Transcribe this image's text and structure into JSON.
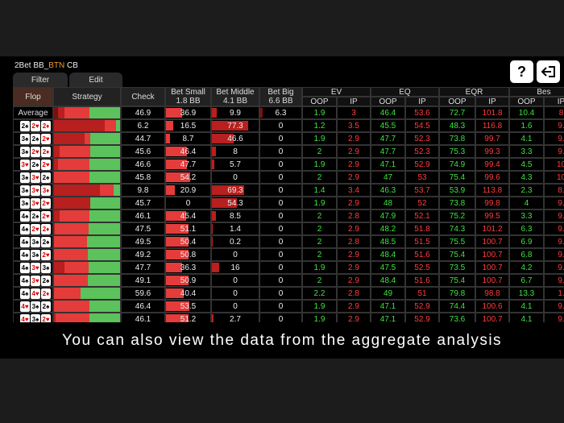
{
  "header": {
    "title": [
      "2Bet BB_",
      "BTN",
      " CB"
    ],
    "tabs": [
      "Filter",
      "Edit"
    ],
    "help": "?"
  },
  "table": {
    "columns": [
      "Flop",
      "Strategy",
      "Check",
      {
        "name": "Bet Small",
        "size": "1.8 BB"
      },
      {
        "name": "Bet Middle",
        "size": "4.1 BB"
      },
      {
        "name": "Bet Big",
        "size": "6.6 BB"
      }
    ],
    "groups": [
      "EV",
      "EQ",
      "EQR",
      "Bes"
    ],
    "sides": [
      "OOP",
      "IP"
    ],
    "rows": [
      {
        "label": "Average",
        "values": [
          46.9,
          36.9,
          9.9,
          6.3,
          1.9,
          3,
          46.4,
          53.6,
          72.7,
          101.8,
          10.4,
          "8"
        ]
      },
      {
        "flop": [
          "2♠",
          "2♥",
          "2♦"
        ],
        "values": [
          6.2,
          16.5,
          77.3,
          0,
          1.2,
          3.5,
          45.5,
          54.5,
          48.3,
          116.8,
          1.6,
          "9."
        ]
      },
      {
        "flop": [
          "3♠",
          "2♠",
          "2♥"
        ],
        "values": [
          44.7,
          8.7,
          46.6,
          0,
          1.9,
          2.9,
          47.7,
          52.3,
          73.8,
          99.7,
          4.1,
          "9."
        ]
      },
      {
        "flop": [
          "3♠",
          "2♥",
          "2♦"
        ],
        "values": [
          45.6,
          46.4,
          8,
          0,
          2,
          2.9,
          47.7,
          52.3,
          75.3,
          99.3,
          3.3,
          "9."
        ]
      },
      {
        "flop": [
          "3♥",
          "2♠",
          "2♥"
        ],
        "values": [
          46.6,
          47.7,
          5.7,
          0,
          1.9,
          2.9,
          47.1,
          52.9,
          74.9,
          99.4,
          4.5,
          "10"
        ]
      },
      {
        "flop": [
          "3♠",
          "3♥",
          "2♠"
        ],
        "values": [
          45.8,
          54.2,
          0,
          0,
          2,
          2.9,
          47,
          53,
          75.4,
          99.6,
          4.3,
          "10"
        ]
      },
      {
        "flop": [
          "3♠",
          "3♥",
          "3♦"
        ],
        "values": [
          9.8,
          20.9,
          69.3,
          0,
          1.4,
          3.4,
          46.3,
          53.7,
          53.9,
          113.8,
          2.3,
          "8."
        ]
      },
      {
        "flop": [
          "3♠",
          "3♥",
          "2♥"
        ],
        "values": [
          45.7,
          0,
          54.3,
          0,
          1.9,
          2.9,
          48,
          52,
          73.8,
          99.8,
          4,
          "9."
        ]
      },
      {
        "flop": [
          "4♠",
          "2♠",
          "2♥"
        ],
        "values": [
          46.1,
          45.4,
          8.5,
          0,
          2,
          2.8,
          47.9,
          52.1,
          75.2,
          99.5,
          3.3,
          "9."
        ]
      },
      {
        "flop": [
          "4♠",
          "2♥",
          "2♦"
        ],
        "values": [
          47.5,
          51.1,
          1.4,
          0,
          2,
          2.9,
          48.2,
          51.8,
          74.3,
          101.2,
          6.3,
          "9."
        ]
      },
      {
        "flop": [
          "4♠",
          "3♠",
          "2♠"
        ],
        "values": [
          49.5,
          50.4,
          0.2,
          0,
          2,
          2.8,
          48.5,
          51.5,
          75.5,
          100.7,
          6.9,
          "9."
        ]
      },
      {
        "flop": [
          "4♠",
          "3♠",
          "2♥"
        ],
        "values": [
          49.2,
          50.8,
          0,
          0,
          2,
          2.9,
          48.4,
          51.6,
          75.4,
          100.7,
          6.8,
          "9."
        ]
      },
      {
        "flop": [
          "4♠",
          "3♥",
          "3♠"
        ],
        "values": [
          47.7,
          36.3,
          16,
          0,
          1.9,
          2.9,
          47.5,
          52.5,
          73.5,
          100.7,
          4.2,
          "9."
        ]
      },
      {
        "flop": [
          "4♠",
          "3♥",
          "2♠"
        ],
        "values": [
          49.1,
          50.9,
          0,
          0,
          2,
          2.9,
          48.4,
          51.6,
          75.4,
          100.7,
          6.7,
          "9."
        ]
      },
      {
        "flop": [
          "4♠",
          "4♥",
          "2♦"
        ],
        "values": [
          59.6,
          40.4,
          0,
          0,
          2.2,
          2.8,
          49,
          51,
          79.8,
          98.8,
          13.3,
          "1."
        ]
      },
      {
        "flop": [
          "4♥",
          "3♠",
          "2♠"
        ],
        "values": [
          46.4,
          53.5,
          0,
          0,
          1.9,
          2.9,
          47.1,
          52.9,
          74.4,
          100.6,
          4.1,
          "9."
        ]
      },
      {
        "flop": [
          "4♥",
          "3♠",
          "2♥"
        ],
        "values": [
          46.1,
          51.2,
          2.7,
          0,
          1.9,
          2.9,
          47.1,
          52.9,
          73.6,
          100.7,
          4.1,
          "9."
        ]
      }
    ]
  },
  "caption": "You can also view the data from the aggregate analysis"
}
